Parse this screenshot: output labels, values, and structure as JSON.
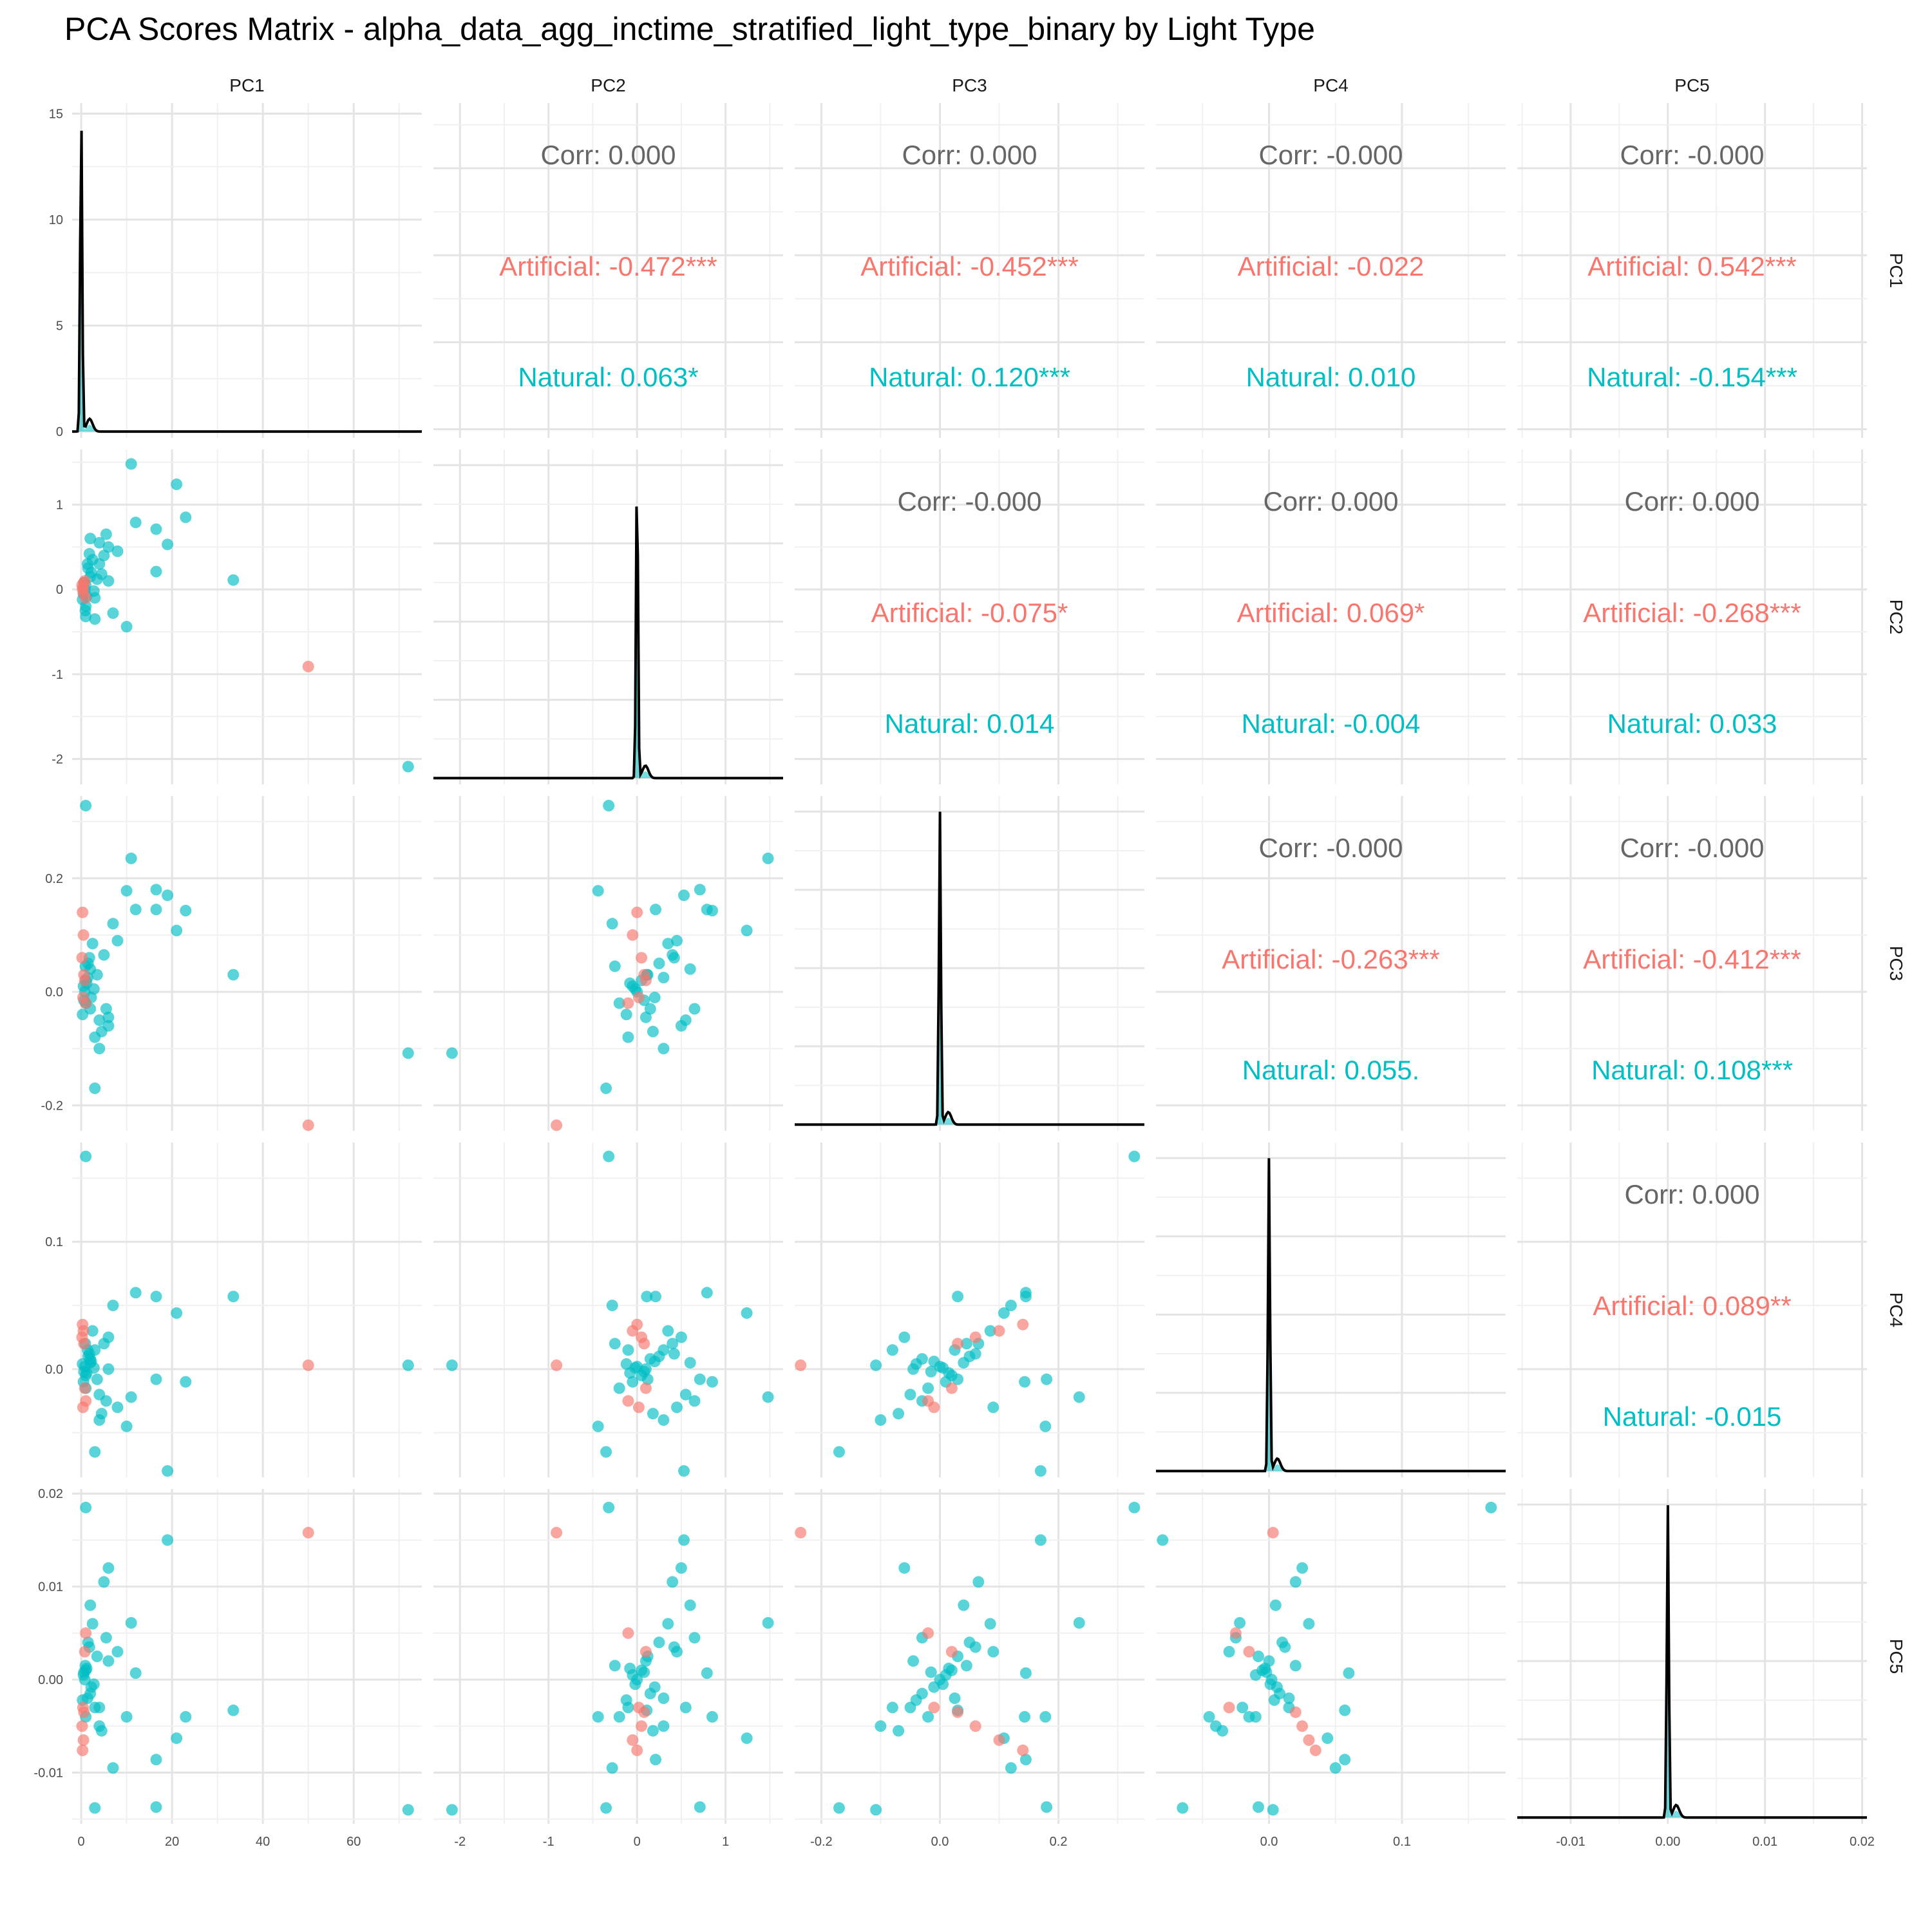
{
  "title": "PCA Scores Matrix - alpha_data_agg_inctime_stratified_light_type_binary by Light Type",
  "colors": {
    "Artificial": "#F8766D",
    "Natural": "#00BFC4",
    "overall": "#666666",
    "density": "#000000"
  },
  "chart_data": {
    "type": "scatter",
    "variables": [
      "PC1",
      "PC2",
      "PC3",
      "PC4",
      "PC5"
    ],
    "groups": [
      "Artificial",
      "Natural"
    ],
    "grid": true,
    "axes": {
      "PC1": {
        "range": [
          -2,
          75
        ],
        "ticks": [
          0,
          20,
          40,
          60
        ],
        "tick_labels": [
          "0",
          "20",
          "40",
          "60"
        ],
        "density_range": [
          -0.3,
          15.5
        ],
        "density_ticks": [
          0,
          5,
          10,
          15
        ],
        "density_tick_labels": [
          "0",
          "5",
          "10",
          "15"
        ]
      },
      "PC2": {
        "range": [
          -2.3,
          1.65
        ],
        "ticks": [
          -2,
          -1,
          0,
          1
        ],
        "tick_labels": [
          "-2",
          "-1",
          "0",
          "1"
        ]
      },
      "PC3": {
        "range": [
          -0.245,
          0.345
        ],
        "ticks": [
          -0.2,
          0.0,
          0.2
        ],
        "tick_labels": [
          "-0.2",
          "0.0",
          "0.2"
        ]
      },
      "PC4": {
        "range": [
          -0.085,
          0.178
        ],
        "ticks": [
          0.0,
          0.1
        ],
        "tick_labels": [
          "0.0",
          "0.1"
        ]
      },
      "PC5": {
        "range": [
          -0.0155,
          0.0205
        ],
        "ticks": [
          -0.01,
          0.0,
          0.01,
          0.02
        ],
        "tick_labels": [
          "-0.01",
          "0.00",
          "0.01",
          "0.02"
        ]
      }
    },
    "correlations": [
      {
        "pair": [
          "PC1",
          "PC2"
        ],
        "overall": "Corr: 0.000",
        "Artificial": "Artificial: -0.472***",
        "Natural": "Natural: 0.063*"
      },
      {
        "pair": [
          "PC1",
          "PC3"
        ],
        "overall": "Corr: 0.000",
        "Artificial": "Artificial: -0.452***",
        "Natural": "Natural: 0.120***"
      },
      {
        "pair": [
          "PC1",
          "PC4"
        ],
        "overall": "Corr: -0.000",
        "Artificial": "Artificial: -0.022",
        "Natural": "Natural: 0.010"
      },
      {
        "pair": [
          "PC1",
          "PC5"
        ],
        "overall": "Corr: -0.000",
        "Artificial": "Artificial: 0.542***",
        "Natural": "Natural: -0.154***"
      },
      {
        "pair": [
          "PC2",
          "PC3"
        ],
        "overall": "Corr: -0.000",
        "Artificial": "Artificial: -0.075*",
        "Natural": "Natural: 0.014"
      },
      {
        "pair": [
          "PC2",
          "PC4"
        ],
        "overall": "Corr: 0.000",
        "Artificial": "Artificial: 0.069*",
        "Natural": "Natural: -0.004"
      },
      {
        "pair": [
          "PC2",
          "PC5"
        ],
        "overall": "Corr: 0.000",
        "Artificial": "Artificial: -0.268***",
        "Natural": "Natural: 0.033"
      },
      {
        "pair": [
          "PC3",
          "PC4"
        ],
        "overall": "Corr: -0.000",
        "Artificial": "Artificial: -0.263***",
        "Natural": "Natural: 0.055."
      },
      {
        "pair": [
          "PC3",
          "PC5"
        ],
        "overall": "Corr: -0.000",
        "Artificial": "Artificial: -0.412***",
        "Natural": "Natural: 0.108***"
      },
      {
        "pair": [
          "PC4",
          "PC5"
        ],
        "overall": "Corr: 0.000",
        "Artificial": "Artificial: 0.089**",
        "Natural": "Natural: -0.015"
      }
    ],
    "points": [
      {
        "group": "Natural",
        "v": [
          72,
          -2.09,
          -0.108,
          0.003,
          -0.014
        ]
      },
      {
        "group": "Artificial",
        "v": [
          50,
          -0.91,
          -0.235,
          0.003,
          0.0158
        ]
      },
      {
        "group": "Natural",
        "v": [
          33.5,
          0.11,
          0.03,
          0.057,
          -0.0033
        ]
      },
      {
        "group": "Natural",
        "v": [
          21,
          1.24,
          0.108,
          0.044,
          -0.0063
        ]
      },
      {
        "group": "Natural",
        "v": [
          23,
          0.85,
          0.143,
          -0.01,
          -0.004
        ]
      },
      {
        "group": "Natural",
        "v": [
          19,
          0.53,
          0.17,
          -0.08,
          0.015
        ]
      },
      {
        "group": "Natural",
        "v": [
          16.5,
          0.71,
          0.18,
          -0.008,
          -0.0137
        ]
      },
      {
        "group": "Natural",
        "v": [
          16.5,
          0.21,
          0.145,
          0.057,
          -0.0086
        ]
      },
      {
        "group": "Natural",
        "v": [
          11,
          1.48,
          0.235,
          -0.022,
          0.0061
        ]
      },
      {
        "group": "Natural",
        "v": [
          12,
          0.79,
          0.145,
          0.06,
          0.0007
        ]
      },
      {
        "group": "Natural",
        "v": [
          10,
          -0.44,
          0.178,
          -0.045,
          -0.004
        ]
      },
      {
        "group": "Natural",
        "v": [
          7,
          -0.28,
          0.12,
          0.05,
          -0.0095
        ]
      },
      {
        "group": "Natural",
        "v": [
          1,
          -0.32,
          0.328,
          0.167,
          0.0185
        ]
      },
      {
        "group": "Natural",
        "v": [
          3,
          -0.35,
          -0.17,
          -0.065,
          -0.0138
        ]
      },
      {
        "group": "Natural",
        "v": [
          6,
          0.5,
          -0.06,
          0.025,
          0.012
        ]
      },
      {
        "group": "Natural",
        "v": [
          5,
          0.4,
          0.065,
          0.02,
          0.0105
        ]
      },
      {
        "group": "Natural",
        "v": [
          4,
          0.3,
          -0.1,
          -0.04,
          -0.005
        ]
      },
      {
        "group": "Natural",
        "v": [
          2,
          0.6,
          0.04,
          0.005,
          0.008
        ]
      },
      {
        "group": "Natural",
        "v": [
          8,
          0.45,
          0.09,
          -0.03,
          0.003
        ]
      },
      {
        "group": "Natural",
        "v": [
          3,
          -0.1,
          -0.08,
          0.015,
          -0.003
        ]
      },
      {
        "group": "Natural",
        "v": [
          1,
          0.05,
          0.02,
          -0.005,
          0.001
        ]
      },
      {
        "group": "Natural",
        "v": [
          2,
          0.15,
          -0.03,
          0.008,
          -0.0015
        ]
      },
      {
        "group": "Natural",
        "v": [
          0.5,
          -0.05,
          0.01,
          -0.01,
          0.0005
        ]
      },
      {
        "group": "Natural",
        "v": [
          1.5,
          0.25,
          0.05,
          0.01,
          0.004
        ]
      },
      {
        "group": "Natural",
        "v": [
          4,
          0.55,
          -0.05,
          -0.02,
          -0.003
        ]
      },
      {
        "group": "Natural",
        "v": [
          2.5,
          0.35,
          0.085,
          0.03,
          0.006
        ]
      },
      {
        "group": "Natural",
        "v": [
          1,
          -0.2,
          -0.02,
          -0.015,
          -0.004
        ]
      },
      {
        "group": "Natural",
        "v": [
          6,
          0.1,
          -0.045,
          0.0,
          0.002
        ]
      },
      {
        "group": "Natural",
        "v": [
          0.8,
          0.0,
          0.0,
          0.002,
          0.0
        ]
      },
      {
        "group": "Natural",
        "v": [
          1.2,
          -0.08,
          0.015,
          -0.003,
          0.0012
        ]
      },
      {
        "group": "Natural",
        "v": [
          2.2,
          0.2,
          -0.01,
          0.006,
          -0.0008
        ]
      },
      {
        "group": "Natural",
        "v": [
          3.5,
          0.12,
          0.03,
          -0.008,
          0.0025
        ]
      },
      {
        "group": "Natural",
        "v": [
          0.3,
          -0.12,
          -0.04,
          0.004,
          -0.0022
        ]
      },
      {
        "group": "Natural",
        "v": [
          1.8,
          0.42,
          0.06,
          0.012,
          0.0035
        ]
      },
      {
        "group": "Natural",
        "v": [
          5.5,
          0.65,
          -0.03,
          -0.025,
          0.0045
        ]
      },
      {
        "group": "Natural",
        "v": [
          2.8,
          -0.02,
          0.005,
          0.001,
          -0.0005
        ]
      },
      {
        "group": "Natural",
        "v": [
          0.6,
          0.08,
          -0.015,
          -0.002,
          0.0008
        ]
      },
      {
        "group": "Natural",
        "v": [
          1.4,
          0.3,
          0.025,
          0.015,
          -0.002
        ]
      },
      {
        "group": "Natural",
        "v": [
          4.5,
          0.18,
          -0.07,
          -0.035,
          -0.0055
        ]
      },
      {
        "group": "Natural",
        "v": [
          0.9,
          -0.25,
          0.045,
          0.02,
          0.0015
        ]
      },
      {
        "group": "Artificial",
        "v": [
          0.3,
          0.0,
          0.14,
          0.035,
          -0.0076
        ]
      },
      {
        "group": "Artificial",
        "v": [
          0.5,
          -0.05,
          0.1,
          0.03,
          -0.0065
        ]
      },
      {
        "group": "Artificial",
        "v": [
          0.2,
          0.05,
          0.06,
          0.025,
          -0.005
        ]
      },
      {
        "group": "Artificial",
        "v": [
          0.8,
          0.1,
          0.02,
          -0.015,
          0.003
        ]
      },
      {
        "group": "Artificial",
        "v": [
          1.0,
          -0.1,
          -0.02,
          -0.025,
          0.005
        ]
      },
      {
        "group": "Artificial",
        "v": [
          0.4,
          0.02,
          -0.01,
          -0.03,
          -0.003
        ]
      },
      {
        "group": "Artificial",
        "v": [
          0.6,
          0.08,
          0.03,
          0.02,
          -0.0035
        ]
      }
    ]
  }
}
